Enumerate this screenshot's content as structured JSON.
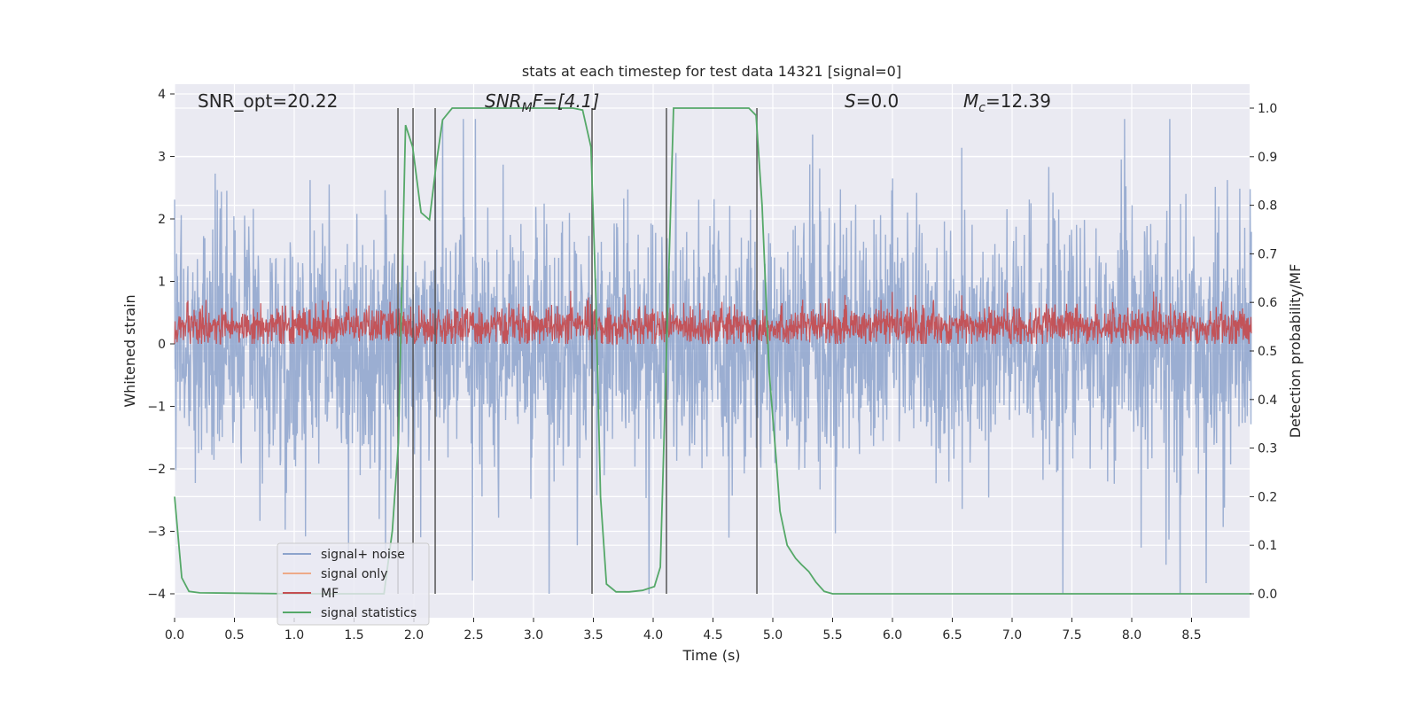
{
  "chart_data": {
    "type": "line",
    "title": "stats at each timestep for test data 14321 [signal=0]",
    "xlabel": "Time (s)",
    "ylabel": "Whitened strain",
    "ylabel_right": "Detection probability/MF",
    "xlim": [
      0,
      9.0
    ],
    "ylim": [
      -4.4,
      4.15
    ],
    "ylim_right": [
      -0.05,
      1.03
    ],
    "xticks": [
      "0.0",
      "0.5",
      "1.0",
      "1.5",
      "2.0",
      "2.5",
      "3.0",
      "3.5",
      "4.0",
      "4.5",
      "5.0",
      "5.5",
      "6.0",
      "6.5",
      "7.0",
      "7.5",
      "8.0",
      "8.5"
    ],
    "yticks": [
      "−4",
      "−3",
      "−2",
      "−1",
      "0",
      "1",
      "2",
      "3",
      "4"
    ],
    "yticks_right": [
      "0.0",
      "0.1",
      "0.2",
      "0.3",
      "0.4",
      "0.5",
      "0.6",
      "0.7",
      "0.8",
      "0.9",
      "1.0"
    ],
    "grid": true,
    "annotations": {
      "snr_opt": "SNR_opt=20.22",
      "snr_mf_main": "SNR",
      "snr_mf_sub": "M",
      "snr_mf_rest": "F=[4.1]",
      "s_main": "S",
      "s_rest": "=0.0",
      "mc_main": "M",
      "mc_sub": "c",
      "mc_rest": "=12.39"
    },
    "legend": {
      "placement": "lower-left",
      "entries": [
        "signal+ noise",
        "signal only",
        "MF",
        "signal statistics"
      ]
    },
    "colors": {
      "noise": "#8da3cc",
      "signal": "#eeaa88",
      "mf": "#c44e52",
      "stats": "#55a868",
      "vline": "#555555"
    },
    "series": [
      {
        "name": "signal+ noise",
        "axis": "left",
        "kind": "noise",
        "mean": 0,
        "std": 0.95,
        "clip": [
          -4,
          3.6
        ]
      },
      {
        "name": "MF",
        "axis": "left",
        "kind": "noise",
        "mean": 0.28,
        "std": 0.15,
        "clip": [
          0,
          0.95
        ]
      },
      {
        "name": "signal statistics",
        "axis": "right",
        "x": [
          0,
          0.06,
          0.12,
          0.21,
          1.0,
          1.75,
          1.82,
          1.87,
          1.93,
          1.99,
          2.06,
          2.13,
          2.19,
          2.24,
          2.32,
          3.33,
          3.41,
          3.48,
          3.52,
          3.56,
          3.61,
          3.69,
          3.8,
          3.91,
          4.01,
          4.06,
          4.11,
          4.17,
          4.8,
          4.86,
          4.91,
          4.97,
          5.03,
          5.06,
          5.12,
          5.19,
          5.24,
          5.3,
          5.36,
          5.43,
          5.5,
          7.0,
          9.0
        ],
        "y": [
          0.2,
          0.033,
          0.005,
          0.002,
          0,
          0,
          0.13,
          0.31,
          0.965,
          0.92,
          0.785,
          0.77,
          0.89,
          0.976,
          1.0,
          1.0,
          0.996,
          0.92,
          0.62,
          0.2,
          0.02,
          0.004,
          0.004,
          0.007,
          0.015,
          0.055,
          0.49,
          1.0,
          1.0,
          0.985,
          0.8,
          0.456,
          0.27,
          0.17,
          0.1,
          0.073,
          0.06,
          0.046,
          0.024,
          0.005,
          0,
          0,
          0
        ]
      }
    ],
    "vlines": {
      "x": [
        1.867,
        1.993,
        2.178,
        3.489,
        4.111,
        4.867
      ],
      "from": 0,
      "to": 1
    }
  }
}
